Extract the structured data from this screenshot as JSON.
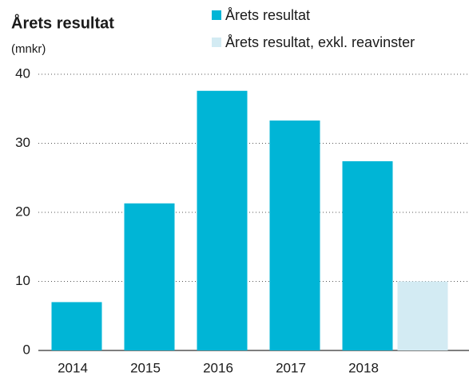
{
  "chart_data": {
    "type": "bar",
    "title": "Årets resultat",
    "subtitle": "(mnkr)",
    "categories": [
      "2014",
      "2015",
      "2016",
      "2017",
      "2018",
      null
    ],
    "series": [
      {
        "name": "Årets resultat",
        "color": "#00b5d6",
        "values": [
          7,
          21.3,
          37.6,
          33.3,
          27.4,
          null
        ]
      },
      {
        "name": "Årets resultat, exkl. reavinster",
        "color": "#d3ebf3",
        "values": [
          null,
          null,
          null,
          null,
          null,
          10
        ]
      }
    ],
    "ylim": [
      0,
      40
    ],
    "yticks": [
      0,
      10,
      20,
      30,
      40
    ],
    "grid": true
  }
}
